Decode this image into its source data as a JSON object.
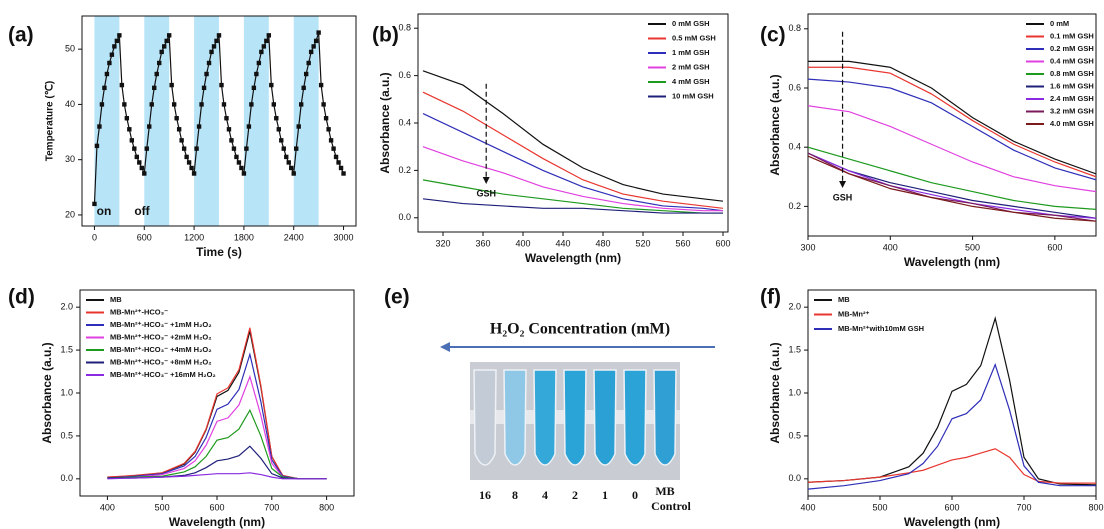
{
  "chart_data": [
    {
      "type": "line",
      "panel_label": "(a)",
      "xlabel": "Time (s)",
      "ylabel": "Temperature (℃)",
      "xlim": [
        -150,
        3150
      ],
      "xticks": [
        0,
        600,
        1200,
        1800,
        2400,
        3000
      ],
      "ylim": [
        18,
        56
      ],
      "yticks": [
        20,
        30,
        40,
        50
      ],
      "shaded_regions": [
        [
          0,
          300
        ],
        [
          600,
          900
        ],
        [
          1200,
          1500
        ],
        [
          1800,
          2100
        ],
        [
          2400,
          2700
        ]
      ],
      "shade_color": "#b8e4f7",
      "annotations": [
        "on",
        "off"
      ],
      "markers": true,
      "x": [
        0,
        30,
        60,
        90,
        120,
        150,
        180,
        210,
        240,
        270,
        300,
        330,
        360,
        390,
        420,
        450,
        480,
        510,
        540,
        570,
        600,
        630,
        660,
        690,
        720,
        750,
        780,
        810,
        840,
        870,
        900,
        930,
        960,
        990,
        1020,
        1050,
        1080,
        1110,
        1140,
        1170,
        1200,
        1230,
        1260,
        1290,
        1320,
        1350,
        1380,
        1410,
        1440,
        1470,
        1500,
        1530,
        1560,
        1590,
        1620,
        1650,
        1680,
        1710,
        1740,
        1770,
        1800,
        1830,
        1860,
        1890,
        1920,
        1950,
        1980,
        2010,
        2040,
        2070,
        2100,
        2130,
        2160,
        2190,
        2220,
        2250,
        2280,
        2310,
        2340,
        2370,
        2400,
        2430,
        2460,
        2490,
        2520,
        2550,
        2580,
        2610,
        2640,
        2670,
        2700,
        2730,
        2760,
        2790,
        2820,
        2850,
        2880,
        2910,
        2940,
        2970,
        3000
      ],
      "series": [
        {
          "color": "#111111",
          "values": [
            22,
            32.5,
            36,
            40,
            43,
            45.5,
            47.5,
            49,
            50.5,
            51.5,
            52.5,
            43.5,
            40,
            37.5,
            35.5,
            33.5,
            32,
            30.5,
            29.5,
            28.5,
            27.5,
            32,
            36,
            40,
            43,
            45.5,
            47.5,
            49.5,
            50.5,
            51.5,
            52.5,
            43.5,
            40,
            37.5,
            35.5,
            33.5,
            32,
            30.5,
            29.5,
            28.5,
            27.5,
            32,
            36,
            40,
            43,
            45.5,
            47.5,
            49.5,
            50.5,
            51.5,
            52.5,
            43.5,
            40,
            37.5,
            35.5,
            33.5,
            32,
            30.5,
            29.5,
            28.5,
            27.5,
            32,
            36,
            40,
            43,
            45.5,
            47.5,
            49.5,
            50.5,
            51.5,
            52.5,
            43.5,
            40,
            37.5,
            35.5,
            33.5,
            32,
            30.5,
            29.5,
            28.5,
            27.5,
            32,
            36,
            40,
            43,
            45.5,
            47.5,
            49.5,
            50.5,
            51.5,
            53,
            43.5,
            40,
            37.5,
            35.5,
            33.5,
            32,
            30.5,
            29.5,
            28.5,
            27.5
          ]
        }
      ]
    },
    {
      "type": "line",
      "panel_label": "(b)",
      "xlabel": "Wavelength (nm)",
      "ylabel": "Absorbance (a.u.)",
      "xlim": [
        295,
        605
      ],
      "xticks": [
        320,
        360,
        400,
        440,
        480,
        520,
        560,
        600
      ],
      "ylim": [
        -0.06,
        0.86
      ],
      "yticks": [
        {
          "value": 0,
          "label": "0.0"
        },
        0.2,
        0.4,
        0.6,
        0.8
      ],
      "legend": "upper right",
      "annotation": "GSH",
      "x": [
        300,
        340,
        380,
        420,
        460,
        500,
        540,
        580,
        600
      ],
      "series": [
        {
          "name": "0 mM GSH",
          "color": "#111111",
          "values": [
            0.62,
            0.56,
            0.44,
            0.31,
            0.21,
            0.14,
            0.1,
            0.08,
            0.07
          ]
        },
        {
          "name": "0.5 mM GSH",
          "color": "#e8362f",
          "values": [
            0.53,
            0.45,
            0.35,
            0.25,
            0.16,
            0.1,
            0.07,
            0.05,
            0.04
          ]
        },
        {
          "name": "1 mM GSH",
          "color": "#2e2eb8",
          "values": [
            0.44,
            0.36,
            0.28,
            0.2,
            0.13,
            0.08,
            0.05,
            0.04,
            0.03
          ]
        },
        {
          "name": "2 mM GSH",
          "color": "#e040e0",
          "values": [
            0.3,
            0.24,
            0.19,
            0.13,
            0.09,
            0.06,
            0.04,
            0.03,
            0.03
          ]
        },
        {
          "name": "4 mM GSH",
          "color": "#1e9a1e",
          "values": [
            0.16,
            0.13,
            0.1,
            0.08,
            0.06,
            0.04,
            0.03,
            0.02,
            0.02
          ]
        },
        {
          "name": "10 mM GSH",
          "color": "#1f1f7a",
          "values": [
            0.08,
            0.06,
            0.05,
            0.04,
            0.04,
            0.03,
            0.02,
            0.02,
            0.02
          ]
        }
      ]
    },
    {
      "type": "line",
      "panel_label": "(c)",
      "xlabel": "Wavelength (nm)",
      "ylabel": "Absorbance (a.u.)",
      "xlim": [
        300,
        650
      ],
      "xticks": [
        300,
        400,
        500,
        600
      ],
      "ylim": [
        0.1,
        0.85
      ],
      "yticks": [
        0.2,
        0.4,
        0.6,
        0.8
      ],
      "legend": "upper right",
      "annotation": "GSH",
      "x": [
        300,
        350,
        400,
        450,
        500,
        550,
        600,
        650
      ],
      "series": [
        {
          "name": "0 mM",
          "color": "#111111",
          "values": [
            0.69,
            0.69,
            0.67,
            0.6,
            0.5,
            0.42,
            0.36,
            0.31
          ]
        },
        {
          "name": "0.1 mM GSH",
          "color": "#e8362f",
          "values": [
            0.67,
            0.67,
            0.65,
            0.58,
            0.49,
            0.41,
            0.35,
            0.3
          ]
        },
        {
          "name": "0.2 mM GSH",
          "color": "#2e2eb8",
          "values": [
            0.63,
            0.62,
            0.6,
            0.55,
            0.47,
            0.39,
            0.33,
            0.29
          ]
        },
        {
          "name": "0.4 mM GSH",
          "color": "#e040e0",
          "values": [
            0.54,
            0.52,
            0.47,
            0.41,
            0.35,
            0.3,
            0.27,
            0.25
          ]
        },
        {
          "name": "0.8 mM GSH",
          "color": "#1e9a1e",
          "values": [
            0.4,
            0.36,
            0.32,
            0.28,
            0.25,
            0.22,
            0.2,
            0.19
          ]
        },
        {
          "name": "1.6 mM GSH",
          "color": "#1f1f7a",
          "values": [
            0.38,
            0.32,
            0.28,
            0.25,
            0.22,
            0.2,
            0.18,
            0.16
          ]
        },
        {
          "name": "2.4 mM GSH",
          "color": "#8a2be2",
          "values": [
            0.38,
            0.32,
            0.27,
            0.24,
            0.21,
            0.19,
            0.17,
            0.16
          ]
        },
        {
          "name": "3.2 mM GSH",
          "color": "#7a1a5a",
          "values": [
            0.38,
            0.31,
            0.27,
            0.23,
            0.21,
            0.18,
            0.17,
            0.15
          ]
        },
        {
          "name": "4.0 mM GSH",
          "color": "#7a1a1a",
          "values": [
            0.37,
            0.31,
            0.26,
            0.23,
            0.2,
            0.18,
            0.16,
            0.15
          ]
        }
      ]
    },
    {
      "type": "line",
      "panel_label": "(d)",
      "xlabel": "Wavelength (nm)",
      "ylabel": "Absorbance (a.u.)",
      "xlim": [
        350,
        850
      ],
      "xticks": [
        400,
        500,
        600,
        700,
        800
      ],
      "ylim": [
        -0.2,
        2.2
      ],
      "yticks": [
        {
          "value": 0,
          "label": "0.0"
        },
        0.5,
        {
          "value": 1,
          "label": "1.0"
        },
        1.5,
        {
          "value": 2,
          "label": "2.0"
        }
      ],
      "legend": "upper left",
      "x": [
        400,
        450,
        500,
        540,
        560,
        580,
        600,
        620,
        640,
        660,
        680,
        700,
        720,
        750,
        800
      ],
      "series": [
        {
          "name": "MB",
          "color": "#111111",
          "values": [
            0.02,
            0.03,
            0.07,
            0.17,
            0.31,
            0.57,
            0.96,
            1.03,
            1.24,
            1.72,
            1.07,
            0.26,
            0.03,
            0,
            0
          ]
        },
        {
          "name": "MB-Mn²⁺-HCO₃⁻",
          "color": "#e8362f",
          "values": [
            0.02,
            0.04,
            0.07,
            0.18,
            0.32,
            0.58,
            0.99,
            1.06,
            1.27,
            1.76,
            1.09,
            0.26,
            0.04,
            0,
            0
          ]
        },
        {
          "name": "MB-Mn²⁺-HCO₃⁻ +1mM H₂O₂",
          "color": "#2e2eb8",
          "values": [
            0.01,
            0.03,
            0.06,
            0.15,
            0.26,
            0.48,
            0.81,
            0.87,
            1.04,
            1.45,
            0.9,
            0.22,
            0.03,
            0,
            0
          ]
        },
        {
          "name": "MB-Mn²⁺-HCO₃⁻ +2mM H₂O₂",
          "color": "#e040e0",
          "values": [
            0.01,
            0.02,
            0.05,
            0.12,
            0.21,
            0.39,
            0.67,
            0.71,
            0.86,
            1.19,
            0.74,
            0.18,
            0.02,
            0,
            0
          ]
        },
        {
          "name": "MB-Mn²⁺-HCO₃⁻ +4mM H₂O₂",
          "color": "#1e9a1e",
          "values": [
            0.01,
            0.02,
            0.03,
            0.08,
            0.14,
            0.26,
            0.45,
            0.48,
            0.58,
            0.8,
            0.5,
            0.12,
            0.02,
            0,
            0
          ]
        },
        {
          "name": "MB-Mn²⁺-HCO₃⁻ +8mM H₂O₂",
          "color": "#1f1f7a",
          "values": [
            0.01,
            0.01,
            0.02,
            0.04,
            0.07,
            0.13,
            0.21,
            0.23,
            0.27,
            0.38,
            0.24,
            0.06,
            0.01,
            0,
            0
          ]
        },
        {
          "name": "MB-Mn²⁺-HCO₃⁻ +16mM H₂O₂",
          "color": "#8a2be2",
          "values": [
            0,
            0.01,
            0.02,
            0.03,
            0.04,
            0.05,
            0.06,
            0.06,
            0.06,
            0.07,
            0.05,
            0.02,
            0,
            0,
            0
          ]
        }
      ]
    },
    {
      "type": "image",
      "panel_label": "(e)",
      "title": "H₂O₂ Concentration (mM)",
      "categories": [
        "16",
        "8",
        "4",
        "2",
        "1",
        "0"
      ],
      "control_label": [
        "MB",
        "Control"
      ]
    },
    {
      "type": "line",
      "panel_label": "(f)",
      "xlabel": "Wavelength (nm)",
      "ylabel": "Absorbance (a.u.)",
      "xlim": [
        400,
        800
      ],
      "xticks": [
        400,
        500,
        600,
        700,
        800
      ],
      "ylim": [
        -0.2,
        2.2
      ],
      "yticks": [
        {
          "value": 0,
          "label": "0.0"
        },
        0.5,
        {
          "value": 1,
          "label": "1.0"
        },
        1.5,
        {
          "value": 2,
          "label": "2.0"
        }
      ],
      "legend": "upper left",
      "x": [
        400,
        450,
        500,
        540,
        560,
        580,
        600,
        620,
        640,
        660,
        680,
        700,
        720,
        750,
        800
      ],
      "series": [
        {
          "name": "MB",
          "color": "#111111",
          "values": [
            -0.04,
            -0.02,
            0.02,
            0.14,
            0.3,
            0.6,
            1.02,
            1.1,
            1.32,
            1.87,
            1.15,
            0.25,
            0,
            -0.06,
            -0.07
          ]
        },
        {
          "name": "MB-Mn²⁺",
          "color": "#e8362f",
          "values": [
            -0.04,
            -0.02,
            0.02,
            0.07,
            0.1,
            0.16,
            0.22,
            0.25,
            0.3,
            0.35,
            0.25,
            0.05,
            -0.03,
            -0.05,
            -0.05
          ]
        },
        {
          "name": "MB-Mn²⁺with10mM GSH",
          "color": "#2e2eb8",
          "values": [
            -0.12,
            -0.08,
            -0.02,
            0.06,
            0.18,
            0.38,
            0.7,
            0.76,
            0.92,
            1.33,
            0.8,
            0.15,
            -0.04,
            -0.08,
            -0.08
          ]
        }
      ]
    }
  ]
}
